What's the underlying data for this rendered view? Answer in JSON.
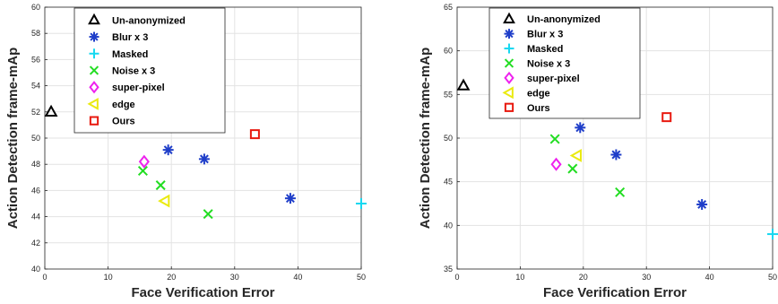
{
  "chart_data": [
    {
      "type": "scatter",
      "xlabel": "Face Verification Error",
      "ylabel": "Action Detection frame-mAp",
      "xlim": [
        0,
        50
      ],
      "ylim": [
        40,
        60
      ],
      "xticks": [
        0,
        10,
        20,
        30,
        40,
        50
      ],
      "yticks": [
        40,
        42,
        44,
        46,
        48,
        50,
        52,
        54,
        56,
        58,
        60
      ],
      "grid": true,
      "legend_position": "top-left",
      "series": [
        {
          "name": "Un-anonymized",
          "marker": "triangle-up",
          "color": "#000000",
          "points": [
            {
              "x": 1,
              "y": 52
            }
          ]
        },
        {
          "name": "Blur x 3",
          "marker": "asterisk",
          "color": "#1f3ec9",
          "points": [
            {
              "x": 19.5,
              "y": 49.1
            },
            {
              "x": 25.2,
              "y": 48.4
            },
            {
              "x": 38.8,
              "y": 45.4
            }
          ]
        },
        {
          "name": "Masked",
          "marker": "plus",
          "color": "#16d8f0",
          "points": [
            {
              "x": 50,
              "y": 45
            }
          ]
        },
        {
          "name": "Noise x 3",
          "marker": "cross",
          "color": "#22dd22",
          "points": [
            {
              "x": 15.5,
              "y": 47.5
            },
            {
              "x": 18.3,
              "y": 46.4
            },
            {
              "x": 25.8,
              "y": 44.2
            }
          ]
        },
        {
          "name": "super-pixel",
          "marker": "diamond",
          "color": "#ee22ee",
          "points": [
            {
              "x": 15.7,
              "y": 48.2
            }
          ]
        },
        {
          "name": "edge",
          "marker": "triangle-left",
          "color": "#eaea10",
          "points": [
            {
              "x": 19,
              "y": 45.2
            }
          ]
        },
        {
          "name": "Ours",
          "marker": "square",
          "color": "#e8190f",
          "points": [
            {
              "x": 33.2,
              "y": 50.3
            }
          ]
        }
      ]
    },
    {
      "type": "scatter",
      "xlabel": "Face Verification Error",
      "ylabel": "Action Detection frame-mAp",
      "xlim": [
        0,
        50
      ],
      "ylim": [
        35,
        65
      ],
      "xticks": [
        0,
        10,
        20,
        30,
        40,
        50
      ],
      "yticks": [
        35,
        40,
        45,
        50,
        55,
        60,
        65
      ],
      "grid": true,
      "legend_position": "top-left",
      "series": [
        {
          "name": "Un-anonymized",
          "marker": "triangle-up",
          "color": "#000000",
          "points": [
            {
              "x": 1,
              "y": 56
            }
          ]
        },
        {
          "name": "Blur x 3",
          "marker": "asterisk",
          "color": "#1f3ec9",
          "points": [
            {
              "x": 19.5,
              "y": 51.2
            },
            {
              "x": 25.2,
              "y": 48.1
            },
            {
              "x": 38.8,
              "y": 42.4
            }
          ]
        },
        {
          "name": "Masked",
          "marker": "plus",
          "color": "#16d8f0",
          "points": [
            {
              "x": 50,
              "y": 39
            }
          ]
        },
        {
          "name": "Noise x 3",
          "marker": "cross",
          "color": "#22dd22",
          "points": [
            {
              "x": 15.5,
              "y": 49.9
            },
            {
              "x": 18.3,
              "y": 46.5
            },
            {
              "x": 25.8,
              "y": 43.8
            }
          ]
        },
        {
          "name": "super-pixel",
          "marker": "diamond",
          "color": "#ee22ee",
          "points": [
            {
              "x": 15.7,
              "y": 47
            }
          ]
        },
        {
          "name": "edge",
          "marker": "triangle-left",
          "color": "#eaea10",
          "points": [
            {
              "x": 19,
              "y": 48
            }
          ]
        },
        {
          "name": "Ours",
          "marker": "square",
          "color": "#e8190f",
          "points": [
            {
              "x": 33.2,
              "y": 52.4
            }
          ]
        }
      ]
    }
  ]
}
